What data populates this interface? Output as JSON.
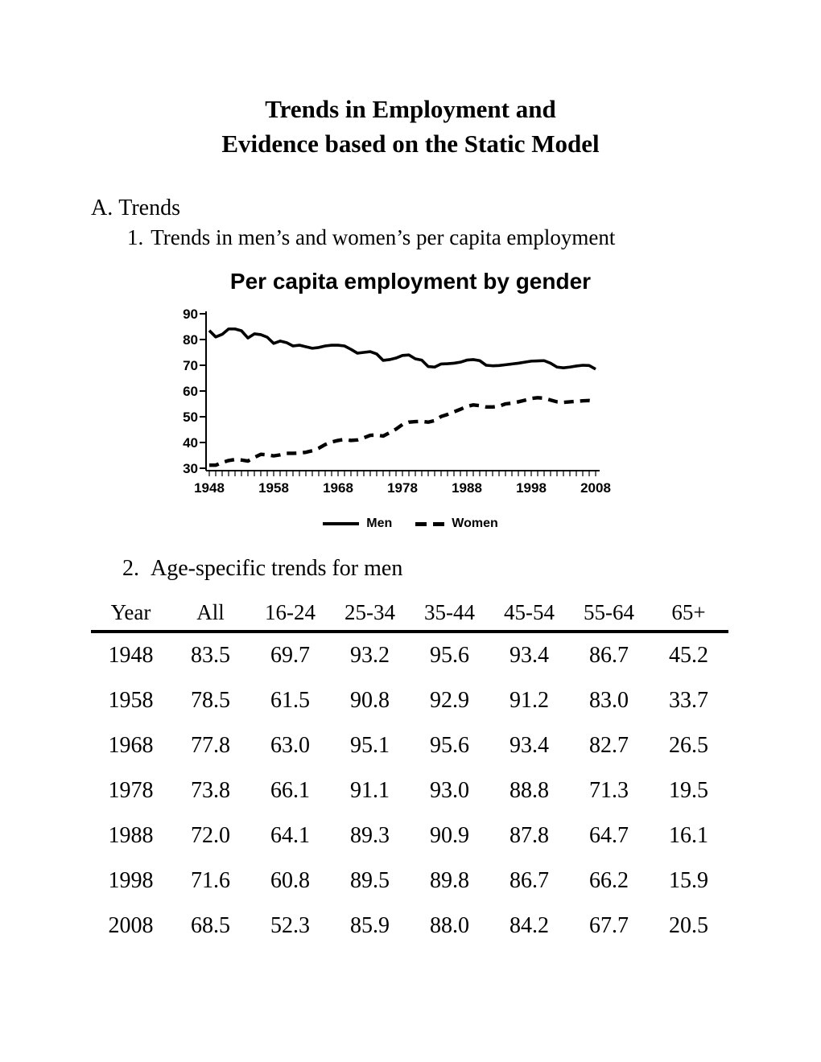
{
  "page": {
    "background": "#ffffff",
    "text_color": "#000000"
  },
  "title": {
    "line1": "Trends in Employment and",
    "line2": "Evidence based on the Static Model"
  },
  "outline": {
    "section_a_number": "A.",
    "section_a_title": "Trends",
    "item1_number": "1.",
    "item1_text": "Trends in men’s and women’s per capita employment",
    "item2_number": "2.",
    "item2_text": "Age-specific trends for men"
  },
  "chart_data": {
    "type": "line",
    "title": "Per capita employment by gender",
    "xlabel": "",
    "ylabel": "",
    "x_start": 1948,
    "x_end": 2008,
    "x_step": 1,
    "ylim": [
      30,
      90
    ],
    "yticks": [
      30,
      40,
      50,
      60,
      70,
      80,
      90
    ],
    "xticks_labeled": [
      1948,
      1958,
      1968,
      1978,
      1988,
      1998,
      2008
    ],
    "grid": false,
    "legend_position": "bottom",
    "line_color": "#000000",
    "series": [
      {
        "name": "Men",
        "style": "solid",
        "values": [
          83.5,
          81.0,
          82.0,
          84.1,
          84.1,
          83.4,
          80.6,
          82.2,
          81.9,
          80.9,
          78.5,
          79.4,
          78.8,
          77.5,
          77.8,
          77.2,
          76.6,
          76.9,
          77.5,
          77.8,
          77.8,
          77.5,
          76.2,
          74.7,
          75.0,
          75.3,
          74.4,
          71.9,
          72.2,
          72.8,
          73.8,
          74.0,
          72.5,
          72.0,
          69.5,
          69.3,
          70.5,
          70.6,
          70.8,
          71.2,
          72.0,
          72.2,
          71.8,
          70.0,
          69.8,
          69.9,
          70.2,
          70.5,
          70.8,
          71.2,
          71.6,
          71.7,
          71.8,
          70.8,
          69.3,
          69.0,
          69.3,
          69.7,
          70.0,
          69.9,
          68.5
        ]
      },
      {
        "name": "Women",
        "style": "dashed",
        "values": [
          31.2,
          31.2,
          32.2,
          33.0,
          33.4,
          33.2,
          32.8,
          34.2,
          35.4,
          35.2,
          34.8,
          35.2,
          35.8,
          35.8,
          35.9,
          36.2,
          36.8,
          37.8,
          39.2,
          40.2,
          40.8,
          41.2,
          40.8,
          41.0,
          41.8,
          42.8,
          42.9,
          42.5,
          43.8,
          45.2,
          47.0,
          47.9,
          48.1,
          48.2,
          47.9,
          48.5,
          50.1,
          50.9,
          51.9,
          52.9,
          54.0,
          54.6,
          54.3,
          53.8,
          53.8,
          54.1,
          55.0,
          55.3,
          55.8,
          56.4,
          57.1,
          57.4,
          57.2,
          56.5,
          55.8,
          55.6,
          55.8,
          56.0,
          56.2,
          56.3,
          56.0
        ]
      }
    ]
  },
  "table": {
    "columns": [
      "Year",
      "All",
      "16-24",
      "25-34",
      "35-44",
      "45-54",
      "55-64",
      "65+"
    ],
    "rows": [
      [
        "1948",
        "83.5",
        "69.7",
        "93.2",
        "95.6",
        "93.4",
        "86.7",
        "45.2"
      ],
      [
        "1958",
        "78.5",
        "61.5",
        "90.8",
        "92.9",
        "91.2",
        "83.0",
        "33.7"
      ],
      [
        "1968",
        "77.8",
        "63.0",
        "95.1",
        "95.6",
        "93.4",
        "82.7",
        "26.5"
      ],
      [
        "1978",
        "73.8",
        "66.1",
        "91.1",
        "93.0",
        "88.8",
        "71.3",
        "19.5"
      ],
      [
        "1988",
        "72.0",
        "64.1",
        "89.3",
        "90.9",
        "87.8",
        "64.7",
        "16.1"
      ],
      [
        "1998",
        "71.6",
        "60.8",
        "89.5",
        "89.8",
        "86.7",
        "66.2",
        "15.9"
      ],
      [
        "2008",
        "68.5",
        "52.3",
        "85.9",
        "88.0",
        "84.2",
        "67.7",
        "20.5"
      ]
    ]
  }
}
